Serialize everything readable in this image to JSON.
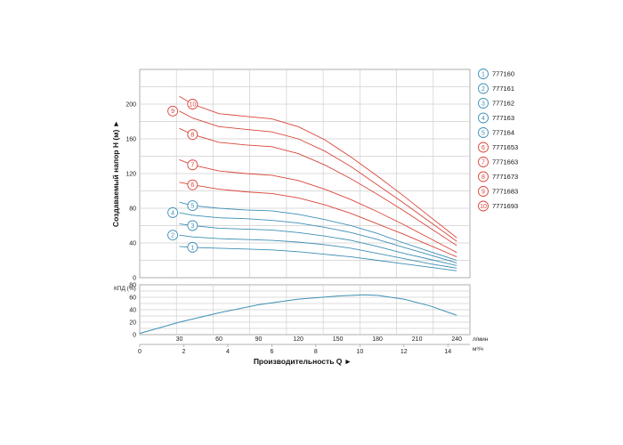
{
  "chart_data": [
    {
      "type": "line",
      "ylabel": "Создаваемый напор H (м) ►",
      "yticks": [
        "0",
        "40",
        "80",
        "120",
        "160",
        "200"
      ],
      "ylim": [
        0,
        240
      ],
      "xlim_lmin": [
        0,
        250
      ],
      "grid": true,
      "legend": "right",
      "series": [
        {
          "name": "777160",
          "label": "1",
          "color": "#3d8fb5",
          "x": [
            30,
            40,
            60,
            80,
            100,
            120,
            140,
            160,
            180,
            200,
            220,
            240
          ],
          "y": [
            36,
            35,
            34,
            33,
            32,
            30,
            27,
            24,
            20,
            16,
            12,
            8
          ]
        },
        {
          "name": "777161",
          "label": "2",
          "color": "#3d8fb5",
          "x": [
            30,
            40,
            60,
            80,
            100,
            120,
            140,
            160,
            180,
            200,
            220,
            240
          ],
          "y": [
            49,
            47,
            45,
            44,
            43,
            41,
            38,
            34,
            28,
            22,
            16,
            11
          ]
        },
        {
          "name": "777162",
          "label": "3",
          "color": "#3d8fb5",
          "x": [
            30,
            40,
            60,
            80,
            100,
            120,
            140,
            160,
            180,
            200,
            220,
            240
          ],
          "y": [
            62,
            60,
            57,
            56,
            55,
            52,
            48,
            43,
            36,
            28,
            21,
            14
          ]
        },
        {
          "name": "777163",
          "label": "4",
          "color": "#3d8fb5",
          "x": [
            30,
            40,
            60,
            80,
            100,
            120,
            140,
            160,
            180,
            200,
            220,
            240
          ],
          "y": [
            75,
            72,
            69,
            68,
            66,
            63,
            58,
            52,
            44,
            35,
            26,
            17
          ]
        },
        {
          "name": "777164",
          "label": "5",
          "color": "#3d8fb5",
          "x": [
            30,
            40,
            60,
            80,
            100,
            120,
            140,
            160,
            180,
            200,
            220,
            240
          ],
          "y": [
            87,
            83,
            80,
            78,
            77,
            73,
            67,
            60,
            51,
            40,
            30,
            20
          ]
        },
        {
          "name": "7771653",
          "label": "6",
          "color": "#d9453a",
          "x": [
            30,
            40,
            60,
            80,
            100,
            120,
            140,
            160,
            180,
            200,
            220,
            240
          ],
          "y": [
            110,
            107,
            102,
            99,
            97,
            92,
            84,
            74,
            62,
            50,
            37,
            24
          ]
        },
        {
          "name": "7771663",
          "label": "7",
          "color": "#d9453a",
          "x": [
            30,
            40,
            60,
            80,
            100,
            120,
            140,
            160,
            180,
            200,
            220,
            240
          ],
          "y": [
            136,
            130,
            123,
            120,
            118,
            112,
            102,
            90,
            76,
            61,
            45,
            29
          ]
        },
        {
          "name": "7771673",
          "label": "8",
          "color": "#d9453a",
          "x": [
            30,
            40,
            60,
            80,
            100,
            120,
            140,
            160,
            180,
            200,
            220,
            240
          ],
          "y": [
            172,
            165,
            156,
            153,
            151,
            143,
            130,
            114,
            96,
            77,
            57,
            37
          ]
        },
        {
          "name": "7771683",
          "label": "9",
          "color": "#d9453a",
          "x": [
            30,
            40,
            60,
            80,
            100,
            120,
            140,
            160,
            180,
            200,
            220,
            240
          ],
          "y": [
            192,
            184,
            174,
            171,
            168,
            160,
            146,
            128,
            107,
            86,
            64,
            42
          ]
        },
        {
          "name": "7771693",
          "label": "10",
          "color": "#d9453a",
          "x": [
            30,
            40,
            60,
            80,
            100,
            120,
            140,
            160,
            180,
            200,
            220,
            240
          ],
          "y": [
            209,
            200,
            189,
            186,
            183,
            174,
            159,
            139,
            117,
            94,
            70,
            46
          ]
        }
      ]
    },
    {
      "type": "line",
      "ylabel": "КПД (%)",
      "yticks": [
        "0",
        "20",
        "40",
        "60",
        "80"
      ],
      "ylim": [
        0,
        80
      ],
      "grid": true,
      "xlim_lmin": [
        0,
        250
      ],
      "xticks_lmin": [
        "30",
        "60",
        "90",
        "120",
        "150",
        "180",
        "210",
        "240"
      ],
      "xunit_lmin": "л/мин",
      "xticks_m3h": [
        "0",
        "2",
        "4",
        "6",
        "8",
        "10",
        "12",
        "14"
      ],
      "xunit_m3h": "м³/ч",
      "xlabel": "Производительность Q ►",
      "series": [
        {
          "color": "#3d8fb5",
          "x": [
            0,
            30,
            60,
            90,
            120,
            150,
            170,
            180,
            200,
            220,
            240
          ],
          "y": [
            2,
            20,
            35,
            48,
            57,
            62,
            64,
            63,
            57,
            46,
            31
          ]
        }
      ]
    }
  ]
}
